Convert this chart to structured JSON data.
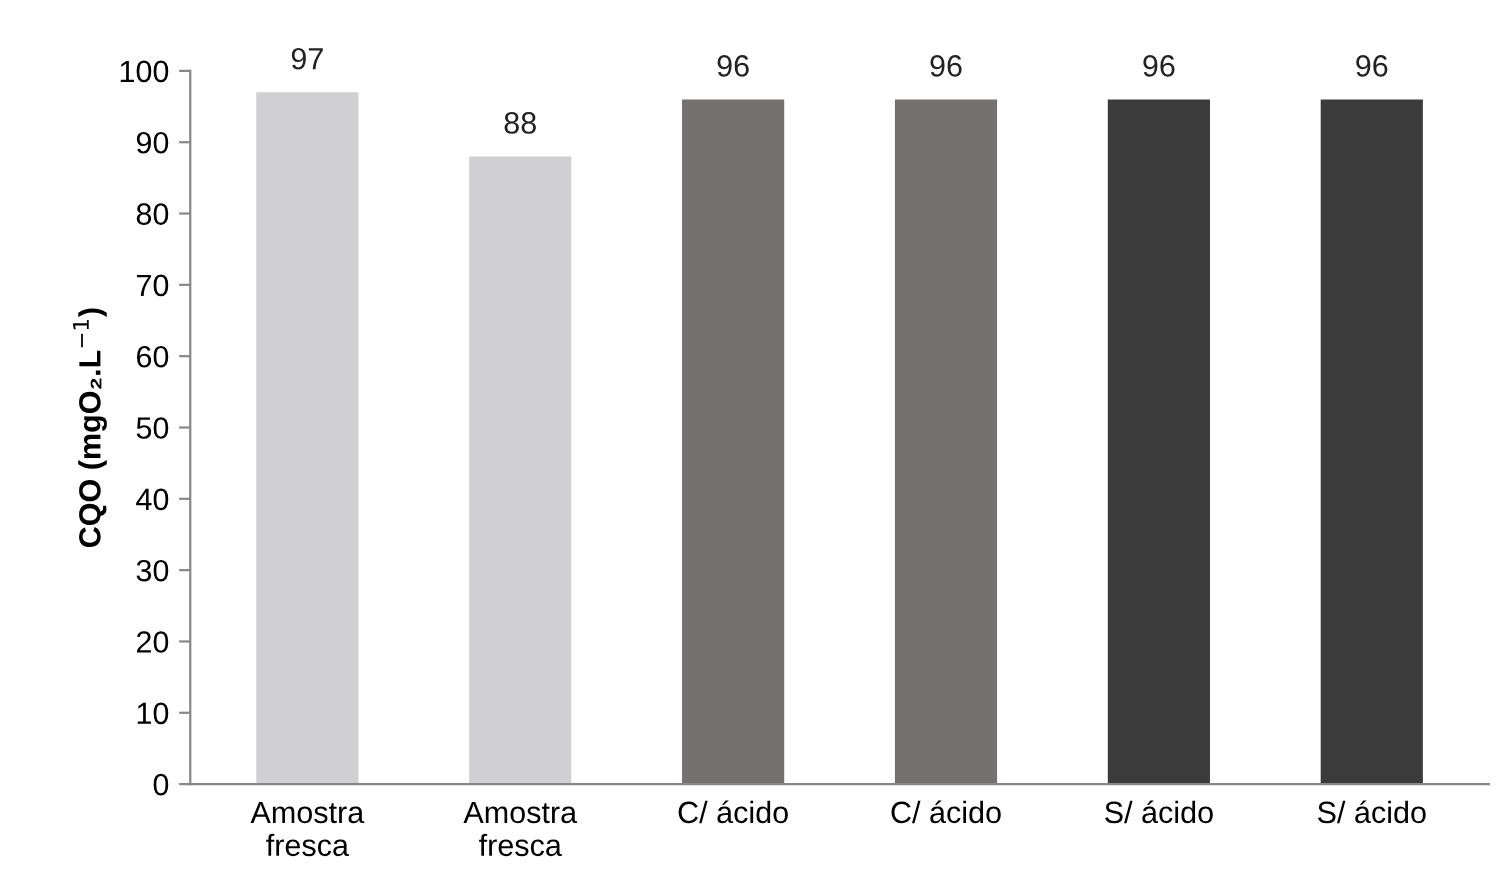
{
  "chart_data": {
    "type": "bar",
    "ylabel": "CQO (mgO₂.L$^{−1}$)",
    "categories": [
      "Amostra\nfresca",
      "Amostra\nfresca",
      "C/ ácido",
      "C/ ácido",
      "S/ ácido",
      "S/ ácido"
    ],
    "values": [
      97,
      88,
      96,
      96,
      96,
      96
    ],
    "colors": [
      "#d0d0d2",
      "#d0d0d2",
      "#747170",
      "#747170",
      "#3b3b3b",
      "#3b3b3b"
    ],
    "ylim": [
      0,
      100
    ],
    "yticks": [
      0,
      10,
      20,
      30,
      40,
      50,
      60,
      70,
      80,
      90,
      100
    ],
    "data_labels": true,
    "grid": false
  }
}
